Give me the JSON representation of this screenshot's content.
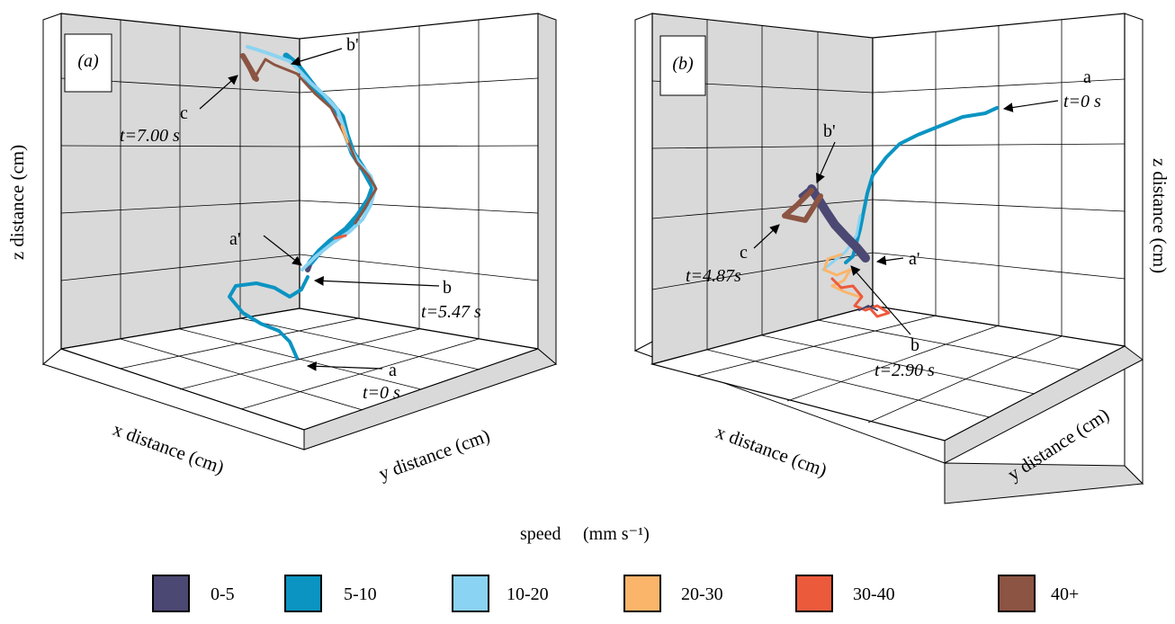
{
  "caption": {
    "speed_label": "speed",
    "speed_unit": "(mm s⁻¹)"
  },
  "legend": [
    {
      "label": "0-5",
      "color": "#4b4873"
    },
    {
      "label": "5-10",
      "color": "#0b94c2"
    },
    {
      "label": "10-20",
      "color": "#8bd3f2"
    },
    {
      "label": "20-30",
      "color": "#fbb56b"
    },
    {
      "label": "30-40",
      "color": "#ec5a3c"
    },
    {
      "label": "40+",
      "color": "#8c5442"
    }
  ],
  "chart_data": [
    {
      "type": "line",
      "panel_label": "(a)",
      "xlabel": "x distance (cm)",
      "ylabel": "y distance (cm)",
      "zlabel": "z distance (cm)",
      "annotations": [
        {
          "id": "a",
          "label": "a",
          "time": "t=0 s"
        },
        {
          "id": "b",
          "label": "b",
          "time": "t=5.47 s"
        },
        {
          "id": "a'",
          "label": "a'",
          "time": ""
        },
        {
          "id": "b'",
          "label": "b'",
          "time": ""
        },
        {
          "id": "c",
          "label": "c",
          "time": "t=7.00 s"
        }
      ],
      "speed_bins_present": [
        "0-5",
        "5-10",
        "10-20",
        "20-30",
        "30-40",
        "40+"
      ]
    },
    {
      "type": "line",
      "panel_label": "(b)",
      "xlabel": "x distance (cm)",
      "ylabel": "y distance (cm)",
      "zlabel": "z distance (cm)",
      "annotations": [
        {
          "id": "a",
          "label": "a",
          "time": "t=0 s"
        },
        {
          "id": "b",
          "label": "b",
          "time": "t=2.90 s"
        },
        {
          "id": "a'",
          "label": "a'",
          "time": ""
        },
        {
          "id": "b'",
          "label": "b'",
          "time": ""
        },
        {
          "id": "c",
          "label": "c",
          "time": "t=4.87s"
        }
      ],
      "speed_bins_present": [
        "0-5",
        "5-10",
        "10-20",
        "20-30",
        "30-40",
        "40+"
      ]
    }
  ]
}
